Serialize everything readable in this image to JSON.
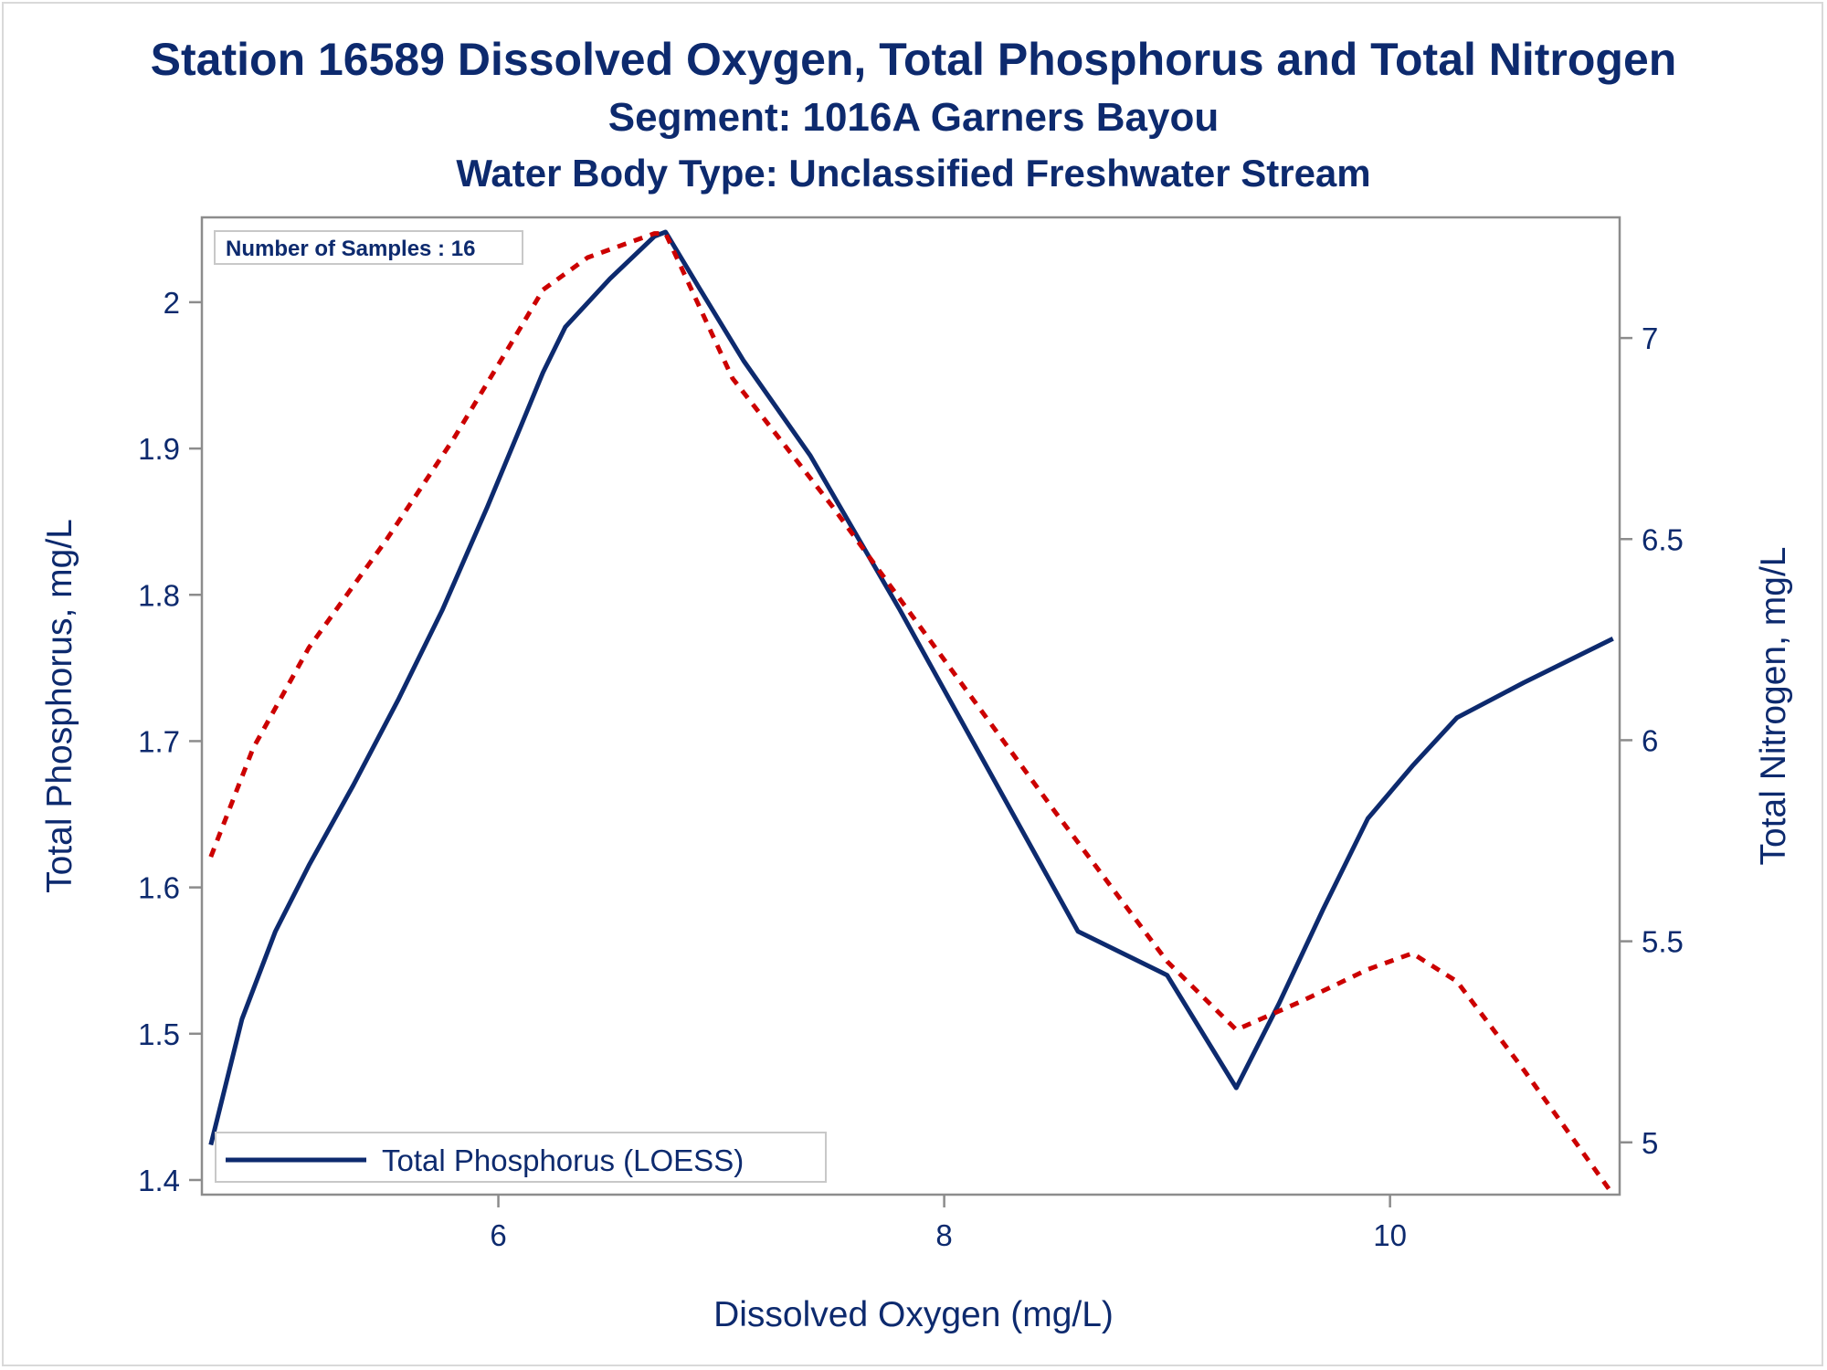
{
  "chart_data": {
    "type": "line",
    "title": "Station 16589  Dissolved Oxygen, Total Phosphorus and Total Nitrogen",
    "subtitle": "Segment: 1016A  Garners Bayou",
    "subtitle2": "Water Body Type: Unclassified Freshwater Stream",
    "xlabel": "Dissolved Oxygen (mg/L)",
    "ylabel": "Total Phosphorus, mg/L",
    "y2label": "Total Nitrogen, mg/L",
    "xlim": [
      4.67,
      11.03
    ],
    "ylim": [
      1.39,
      2.058
    ],
    "y2lim": [
      4.87,
      7.3
    ],
    "xticks": [
      6,
      8,
      10
    ],
    "yticks": [
      1.4,
      1.5,
      1.6,
      1.7,
      1.8,
      1.9,
      2
    ],
    "y2ticks": [
      5,
      5.5,
      6,
      6.5,
      7
    ],
    "annotation": "Number of Samples : 16",
    "legend": {
      "position": "bottom-left",
      "entries": [
        "Total Phosphorus (LOESS)"
      ]
    },
    "colors": {
      "phosphorus": "#0d2a6e",
      "nitrogen": "#cc0000",
      "text": "#0d2a6e",
      "axis": "#8c8c8c"
    },
    "series": [
      {
        "name": "Total Phosphorus (LOESS)",
        "axis": "left",
        "style": "solid",
        "x": [
          4.71,
          4.85,
          5.0,
          5.15,
          5.35,
          5.55,
          5.75,
          5.95,
          6.1,
          6.2,
          6.3,
          6.5,
          6.7,
          6.75,
          6.9,
          7.1,
          7.4,
          7.8,
          8.2,
          8.6,
          9.0,
          9.31,
          9.5,
          9.7,
          9.9,
          10.1,
          10.3,
          10.6,
          11.0
        ],
        "y": [
          1.424,
          1.51,
          1.57,
          1.615,
          1.67,
          1.728,
          1.79,
          1.86,
          1.915,
          1.952,
          1.983,
          2.016,
          2.045,
          2.048,
          2.01,
          1.96,
          1.895,
          1.79,
          1.68,
          1.57,
          1.54,
          1.463,
          1.52,
          1.585,
          1.647,
          1.683,
          1.716,
          1.74,
          1.77
        ]
      },
      {
        "name": "",
        "axis": "right",
        "style": "dashed",
        "x": [
          4.71,
          4.9,
          5.15,
          5.5,
          5.8,
          6.05,
          6.2,
          6.4,
          6.7,
          6.75,
          7.05,
          7.5,
          8.0,
          8.5,
          9.0,
          9.31,
          9.6,
          9.9,
          10.1,
          10.3,
          10.6,
          11.0
        ],
        "y": [
          5.71,
          5.98,
          6.23,
          6.5,
          6.75,
          6.98,
          7.12,
          7.2,
          7.26,
          7.26,
          6.9,
          6.58,
          6.2,
          5.82,
          5.45,
          5.28,
          5.35,
          5.43,
          5.47,
          5.4,
          5.18,
          4.87
        ]
      }
    ]
  }
}
